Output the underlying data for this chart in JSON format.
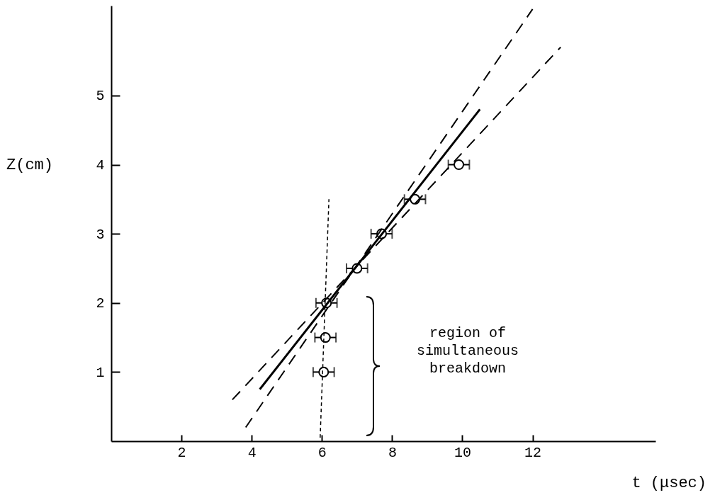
{
  "chart_data": {
    "type": "scatter",
    "xlabel": "t (μsec)",
    "ylabel": "Z(cm)",
    "xlim": [
      0,
      15.5
    ],
    "ylim": [
      0,
      6.3
    ],
    "xticks": [
      2,
      4,
      6,
      8,
      10,
      12
    ],
    "yticks": [
      1,
      2,
      3,
      4,
      5
    ],
    "grid": false,
    "series": [
      {
        "marker": "circle",
        "color": "#000000",
        "x": [
          6.05,
          6.1,
          6.13,
          7.0,
          7.7,
          8.65,
          9.9
        ],
        "values": [
          1.0,
          1.5,
          2.0,
          2.5,
          3.0,
          3.5,
          4.0
        ],
        "xerrors": [
          0.3,
          0.3,
          0.3,
          0.3,
          0.3,
          0.3,
          0.3
        ]
      },
      {
        "type": "line",
        "color": "#000000",
        "line_style": "solid",
        "x": [
          4.23,
          10.5
        ],
        "values": [
          0.75,
          4.8
        ]
      },
      {
        "type": "line",
        "color": "#000000",
        "line_style": "dashed",
        "x": [
          3.83,
          12.0
        ],
        "values": [
          0.2,
          6.25
        ]
      },
      {
        "type": "line",
        "color": "#000000",
        "line_style": "dashed",
        "x": [
          3.45,
          12.8
        ],
        "values": [
          0.6,
          5.7
        ]
      },
      {
        "type": "line",
        "color": "#000000",
        "line_style": "dotted",
        "x": [
          5.95,
          6.2
        ],
        "values": [
          0.05,
          3.5
        ]
      }
    ],
    "annotations": [
      "region of\nsimultaneous\nbreakdown"
    ]
  }
}
